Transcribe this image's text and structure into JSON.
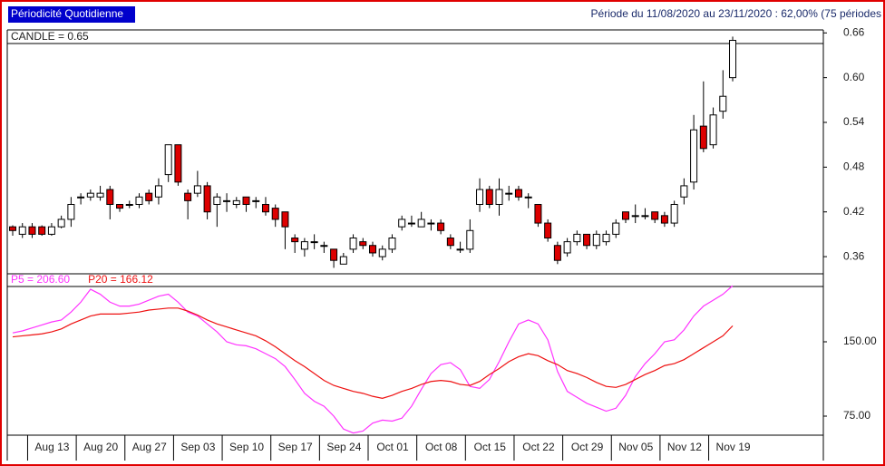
{
  "header": {
    "left": "Périodicité Quotidienne",
    "right": "Période du 11/08/2020 au 23/11/2020 : 62,00% (75 périodes"
  },
  "chart_data": [
    {
      "type": "candlestick",
      "label": "CANDLE = 0.65",
      "up_color": "#ffffff",
      "down_color": "#dd0000",
      "ylim": [
        0.337,
        0.664
      ],
      "yticks": [
        0.36,
        0.42,
        0.48,
        0.54,
        {
          "value": 0.6,
          "label": "0.60"
        },
        0.66
      ],
      "open": [
        0.4,
        0.39,
        0.4,
        0.4,
        0.39,
        0.4,
        0.41,
        0.44,
        0.44,
        0.44,
        0.45,
        0.43,
        0.43,
        0.43,
        0.445,
        0.44,
        0.47,
        0.51,
        0.445,
        0.445,
        0.455,
        0.43,
        0.435,
        0.43,
        0.44,
        0.435,
        0.43,
        0.425,
        0.42,
        0.385,
        0.37,
        0.38,
        0.375,
        0.37,
        0.35,
        0.37,
        0.38,
        0.375,
        0.36,
        0.37,
        0.4,
        0.405,
        0.4,
        0.405,
        0.405,
        0.385,
        0.37,
        0.37,
        0.43,
        0.45,
        0.43,
        0.445,
        0.45,
        0.44,
        0.43,
        0.405,
        0.375,
        0.365,
        0.38,
        0.39,
        0.375,
        0.38,
        0.39,
        0.42,
        0.415,
        0.415,
        0.42,
        0.415,
        0.405,
        0.44,
        0.46,
        0.535,
        0.51,
        0.555,
        0.6
      ],
      "close": [
        0.395,
        0.4,
        0.39,
        0.39,
        0.4,
        0.41,
        0.43,
        0.44,
        0.445,
        0.445,
        0.43,
        0.425,
        0.43,
        0.44,
        0.435,
        0.455,
        0.51,
        0.46,
        0.435,
        0.455,
        0.42,
        0.44,
        0.435,
        0.435,
        0.43,
        0.435,
        0.42,
        0.41,
        0.4,
        0.38,
        0.38,
        0.38,
        0.375,
        0.355,
        0.36,
        0.385,
        0.375,
        0.365,
        0.37,
        0.385,
        0.41,
        0.405,
        0.41,
        0.405,
        0.395,
        0.375,
        0.37,
        0.395,
        0.45,
        0.43,
        0.45,
        0.445,
        0.44,
        0.44,
        0.405,
        0.385,
        0.355,
        0.38,
        0.39,
        0.375,
        0.39,
        0.39,
        0.405,
        0.41,
        0.415,
        0.415,
        0.41,
        0.405,
        0.43,
        0.455,
        0.53,
        0.505,
        0.55,
        0.575,
        0.65
      ],
      "high": [
        0.402,
        0.405,
        0.405,
        0.402,
        0.405,
        0.415,
        0.44,
        0.445,
        0.45,
        0.455,
        0.455,
        0.43,
        0.435,
        0.445,
        0.45,
        0.465,
        0.51,
        0.51,
        0.45,
        0.475,
        0.46,
        0.445,
        0.445,
        0.44,
        0.44,
        0.44,
        0.44,
        0.43,
        0.42,
        0.39,
        0.385,
        0.39,
        0.38,
        0.37,
        0.365,
        0.39,
        0.385,
        0.38,
        0.375,
        0.39,
        0.415,
        0.415,
        0.42,
        0.41,
        0.41,
        0.39,
        0.38,
        0.41,
        0.465,
        0.455,
        0.465,
        0.455,
        0.455,
        0.445,
        0.43,
        0.41,
        0.38,
        0.385,
        0.395,
        0.39,
        0.395,
        0.395,
        0.41,
        0.42,
        0.43,
        0.425,
        0.42,
        0.42,
        0.435,
        0.465,
        0.55,
        0.595,
        0.56,
        0.61,
        0.655
      ],
      "low": [
        0.388,
        0.385,
        0.385,
        0.388,
        0.388,
        0.398,
        0.4,
        0.43,
        0.435,
        0.435,
        0.41,
        0.42,
        0.425,
        0.425,
        0.43,
        0.43,
        0.46,
        0.455,
        0.41,
        0.44,
        0.41,
        0.4,
        0.42,
        0.425,
        0.42,
        0.425,
        0.415,
        0.4,
        0.37,
        0.365,
        0.36,
        0.37,
        0.365,
        0.345,
        0.35,
        0.365,
        0.37,
        0.36,
        0.355,
        0.365,
        0.395,
        0.4,
        0.4,
        0.395,
        0.39,
        0.37,
        0.365,
        0.365,
        0.42,
        0.425,
        0.415,
        0.435,
        0.435,
        0.425,
        0.4,
        0.38,
        0.35,
        0.36,
        0.375,
        0.37,
        0.37,
        0.375,
        0.385,
        0.405,
        0.405,
        0.41,
        0.405,
        0.4,
        0.4,
        0.43,
        0.45,
        0.5,
        0.505,
        0.545,
        0.595
      ]
    },
    {
      "type": "line",
      "ylim": [
        55.8,
        205.8
      ],
      "yticks": [
        {
          "value": 75,
          "label": "75.00"
        },
        {
          "value": 150,
          "label": "150.00"
        }
      ],
      "categories": [
        null,
        null,
        "Aug 13",
        null,
        null,
        null,
        null,
        "Aug 20",
        null,
        null,
        null,
        null,
        "Aug 27",
        null,
        null,
        null,
        null,
        "Sep 03",
        null,
        null,
        null,
        null,
        "Sep 10",
        null,
        null,
        null,
        null,
        "Sep 17",
        null,
        null,
        null,
        null,
        "Sep 24",
        null,
        null,
        null,
        null,
        "Oct 01",
        null,
        null,
        null,
        null,
        "Oct 08",
        null,
        null,
        null,
        null,
        "Oct 15",
        null,
        null,
        null,
        null,
        "Oct 22",
        null,
        null,
        null,
        null,
        "Oct 29",
        null,
        null,
        null,
        null,
        "Nov 05",
        null,
        null,
        null,
        null,
        "Nov 12",
        null,
        null,
        null,
        null,
        "Nov 19",
        null,
        null
      ],
      "series": [
        {
          "name": "P5 = 206.60",
          "color": "#ff33ff",
          "values": [
            159,
            161,
            164,
            167,
            170,
            172,
            180,
            190,
            203,
            198,
            190,
            186,
            186,
            188,
            192,
            196,
            198,
            190,
            180,
            176,
            168,
            160,
            150,
            147,
            146,
            143,
            138,
            133,
            125,
            112,
            98,
            90,
            85,
            75,
            62,
            58,
            60,
            68,
            71,
            70,
            73,
            85,
            102,
            118,
            127,
            129,
            122,
            105,
            103,
            112,
            130,
            150,
            168,
            172,
            168,
            152,
            120,
            100,
            94,
            88,
            84,
            80,
            83,
            96,
            115,
            128,
            138,
            150,
            152,
            162,
            176,
            186,
            192,
            198,
            206.6
          ]
        },
        {
          "name": "P20 = 166.12",
          "color": "#ee1111",
          "values": [
            155,
            156,
            157,
            158,
            160,
            163,
            168,
            172,
            176,
            178,
            178,
            178,
            179,
            180,
            182,
            183,
            184,
            184,
            181,
            177,
            172,
            168,
            165,
            162,
            159,
            156,
            151,
            145,
            138,
            131,
            125,
            118,
            111,
            106,
            103,
            100,
            98,
            95,
            93,
            96,
            100,
            103,
            107,
            110,
            111,
            110,
            107,
            106,
            110,
            117,
            123,
            130,
            135,
            138,
            136,
            131,
            127,
            121,
            118,
            114,
            109,
            105,
            104,
            107,
            112,
            117,
            121,
            126,
            128,
            132,
            138,
            144,
            150,
            156,
            166.12
          ]
        }
      ]
    }
  ]
}
